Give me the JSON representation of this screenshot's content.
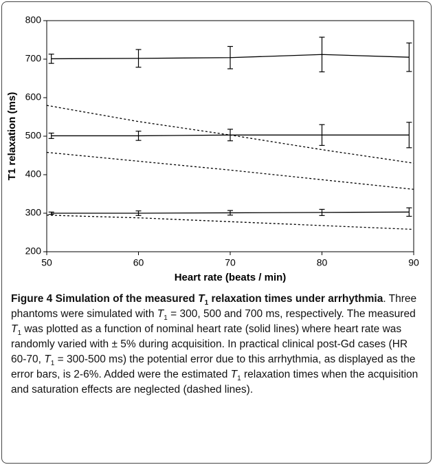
{
  "chart_data": {
    "type": "line",
    "xlabel": "Heart rate (beats / min)",
    "ylabel": "T1 relaxation (ms)",
    "xlim": [
      50,
      90
    ],
    "xticks": [
      50,
      60,
      70,
      80,
      90
    ],
    "ylim": [
      200,
      800
    ],
    "yticks": [
      200,
      300,
      400,
      500,
      600,
      700,
      800
    ],
    "series": [
      {
        "style": "solid",
        "color": "#000000",
        "x": [
          50.5,
          60,
          70,
          80,
          89.5
        ],
        "values": [
          701,
          702,
          704,
          712,
          705
        ],
        "errors": [
          12,
          23,
          29,
          45,
          37
        ]
      },
      {
        "style": "solid",
        "color": "#000000",
        "x": [
          50.5,
          60,
          70,
          80,
          89.5
        ],
        "values": [
          501,
          501,
          503,
          503,
          503
        ],
        "errors": [
          7,
          12,
          15,
          27,
          33
        ]
      },
      {
        "style": "solid",
        "color": "#000000",
        "x": [
          50.5,
          60,
          70,
          80,
          89.5
        ],
        "values": [
          300,
          300,
          301,
          302,
          303
        ],
        "errors": [
          3,
          6,
          6,
          8,
          11
        ]
      },
      {
        "style": "dashed",
        "color": "#000000",
        "x": [
          50,
          60,
          70,
          80,
          90
        ],
        "values": [
          580,
          538,
          503,
          465,
          430
        ]
      },
      {
        "style": "dashed",
        "color": "#000000",
        "x": [
          50,
          60,
          70,
          80,
          90
        ],
        "values": [
          458,
          435,
          412,
          387,
          362
        ]
      },
      {
        "style": "dashed",
        "color": "#000000",
        "x": [
          50,
          60,
          70,
          80,
          90
        ],
        "values": [
          295,
          288,
          278,
          268,
          258
        ]
      }
    ]
  },
  "caption": [
    {
      "style": "b",
      "text": "Figure 4 Simulation of the measured "
    },
    {
      "style": "bi",
      "text": "T"
    },
    {
      "style": "bsub",
      "text": "1"
    },
    {
      "style": "b",
      "text": " relaxation times under arrhythmia"
    },
    {
      "style": "n",
      "text": ". Three phantoms were simulated with "
    },
    {
      "style": "i",
      "text": "T"
    },
    {
      "style": "sub",
      "text": "1"
    },
    {
      "style": "n",
      "text": " = 300, 500 and 700 ms, respectively. The measured "
    },
    {
      "style": "i",
      "text": "T"
    },
    {
      "style": "sub",
      "text": "1"
    },
    {
      "style": "n",
      "text": " was plotted as a function of nominal heart rate (solid lines) where heart rate was randomly varied with ± 5% during acquisition. In practical clinical post-Gd cases (HR 60-70, "
    },
    {
      "style": "i",
      "text": "T"
    },
    {
      "style": "sub",
      "text": "1"
    },
    {
      "style": "n",
      "text": " = 300-500 ms) the potential error due to this arrhythmia, as displayed as the error bars, is 2-6%. Added were the estimated "
    },
    {
      "style": "i",
      "text": "T"
    },
    {
      "style": "sub",
      "text": "1"
    },
    {
      "style": "n",
      "text": " relaxation times when the acquisition and saturation effects are neglected (dashed lines)."
    }
  ]
}
